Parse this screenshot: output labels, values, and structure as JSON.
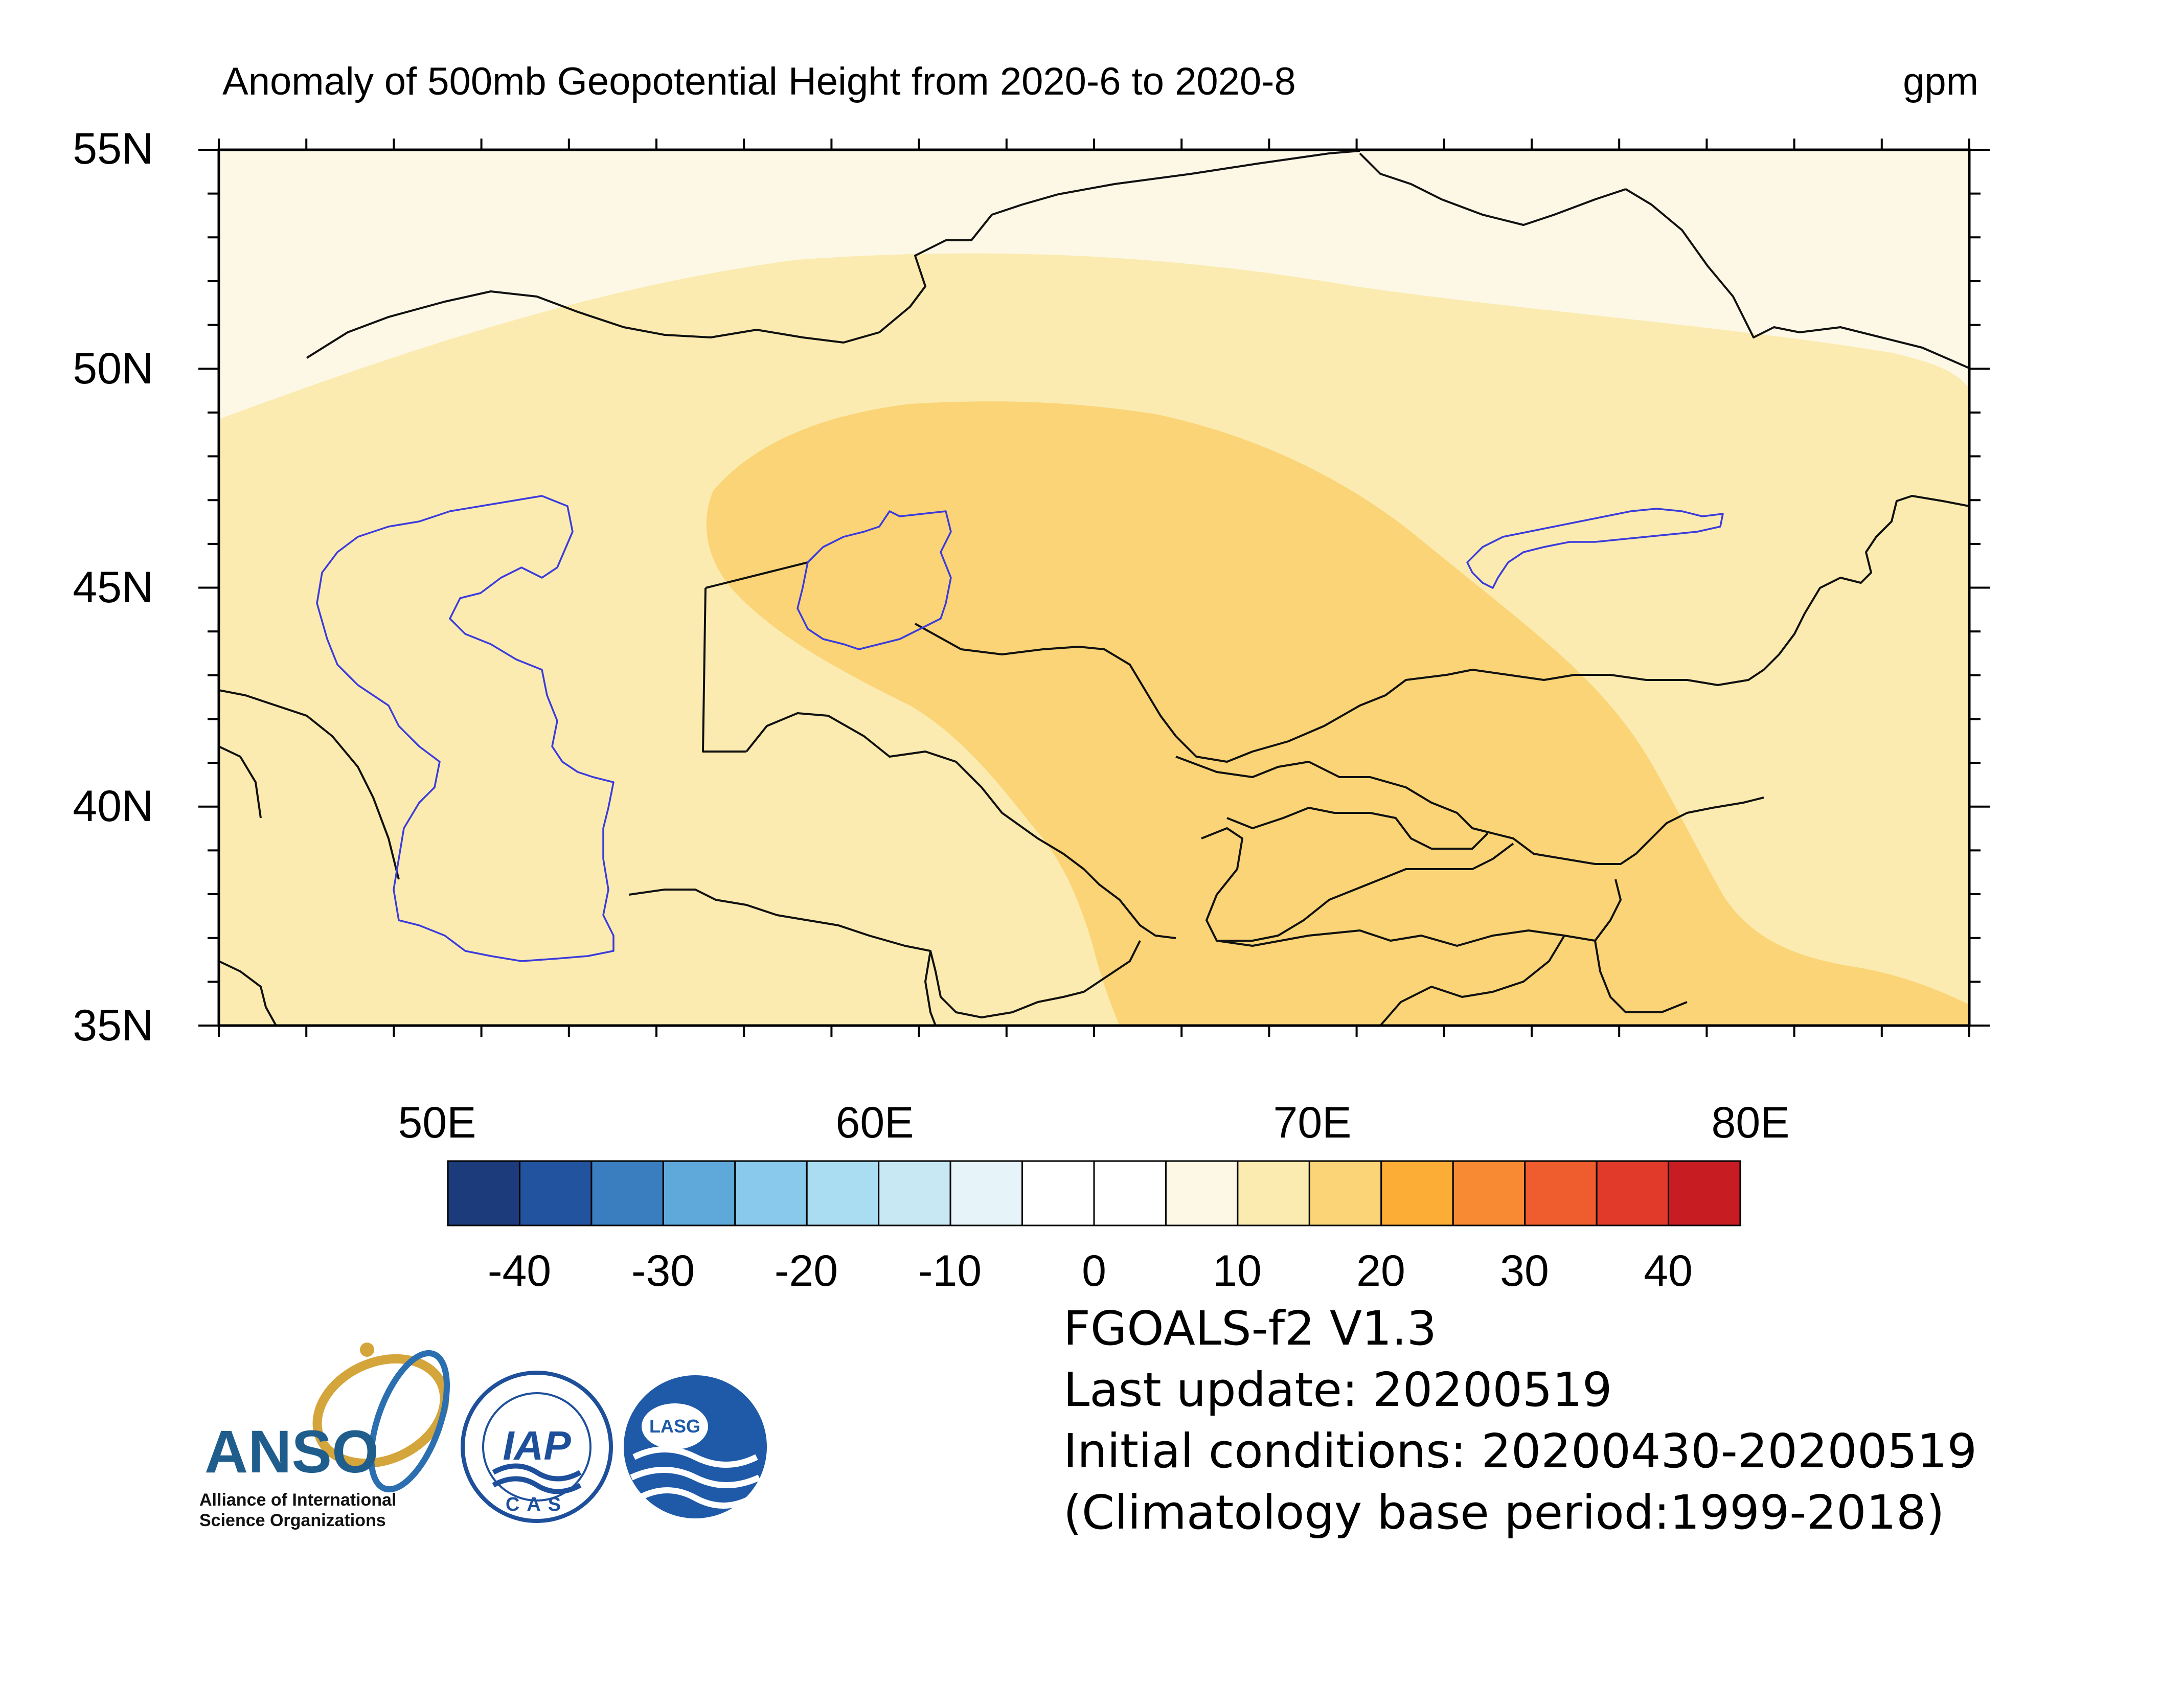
{
  "map": {
    "title": "Anomaly of 500mb Geopotential Height from 2020-6 to 2020-8",
    "units": "gpm",
    "lon_range": [
      45,
      85
    ],
    "lat_range": [
      35,
      55
    ],
    "lat_ticks": [
      "55N",
      "50N",
      "45N",
      "40N",
      "35N"
    ],
    "lon_ticks": [
      "50E",
      "60E",
      "70E",
      "80E"
    ],
    "shading_levels": {
      "5_to_10": "#fdf8e6",
      "10_to_15": "#fbebb0",
      "15_to_20": "#fad476"
    }
  },
  "colorbar": {
    "colors": [
      "#1c3b7a",
      "#22539f",
      "#3a7ec0",
      "#5ea8da",
      "#89c9ec",
      "#aadcf2",
      "#c8e8f4",
      "#e6f4f9",
      "#ffffff",
      "#ffffff",
      "#fdf8e6",
      "#fbebb0",
      "#fad476",
      "#fbad36",
      "#f88a33",
      "#ef5c2d",
      "#e23a2a",
      "#c71c22"
    ],
    "labels": [
      "-40",
      "-30",
      "-20",
      "-10",
      "0",
      "10",
      "20",
      "30",
      "40"
    ]
  },
  "info": {
    "model": "FGOALS-f2 V1.3",
    "last_update": "Last update: 20200519",
    "initial_conditions": "Initial conditions: 20200430-20200519",
    "climatology": "(Climatology base period:1999-2018)"
  },
  "logos": {
    "anso": "ANSO",
    "anso_subtitle_line1": "Alliance of International",
    "anso_subtitle_line2": "Science Organizations",
    "iap": "IAP",
    "cas": "CAS",
    "lasg": "LASG"
  }
}
